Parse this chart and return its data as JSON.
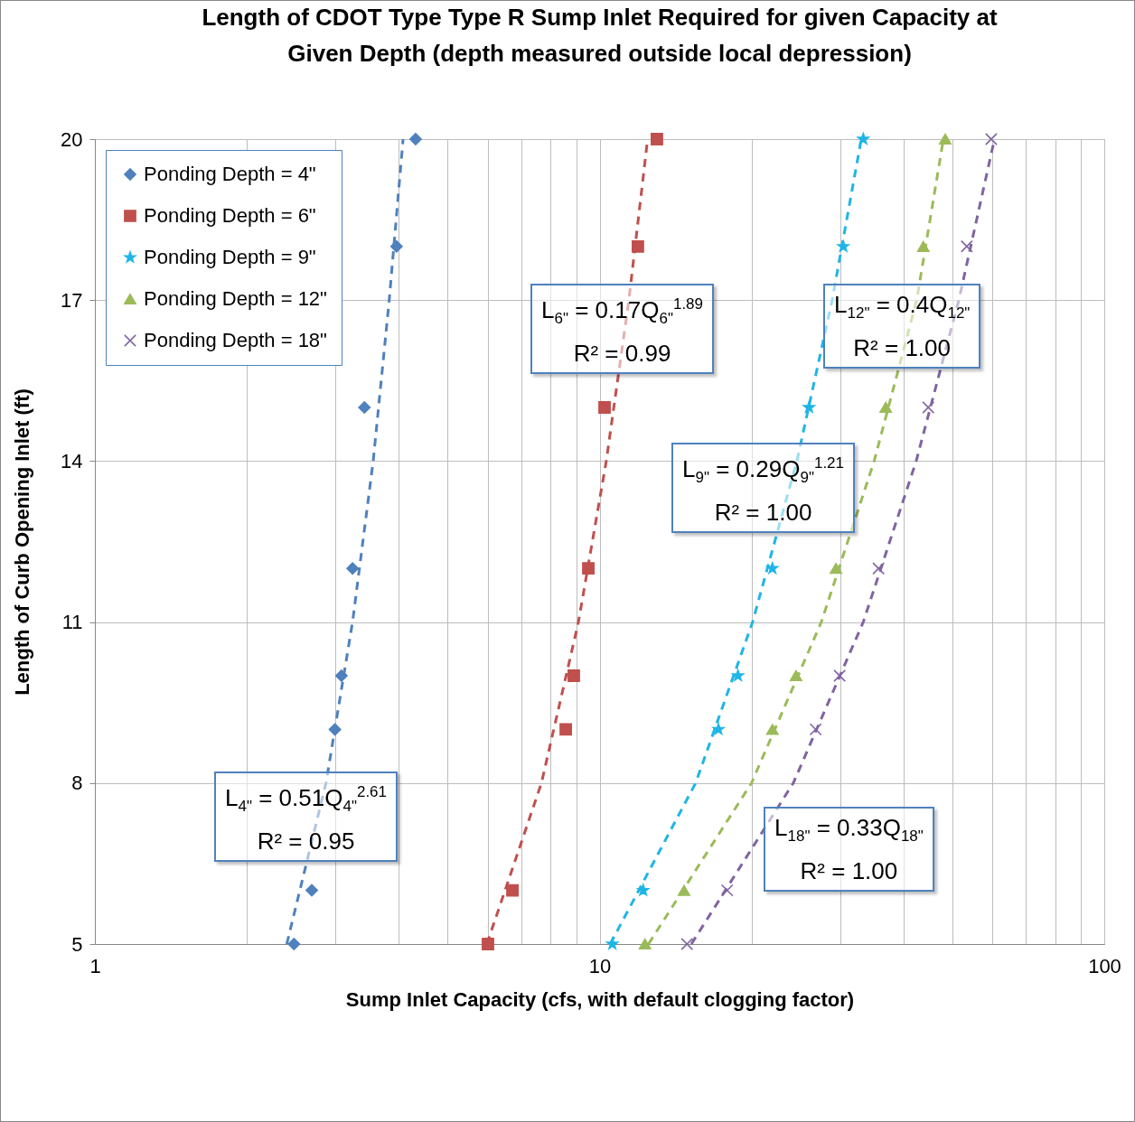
{
  "chart_data": {
    "type": "scatter",
    "title": "Length of CDOT Type Type R Sump Inlet Required for given Capacity at\nGiven Depth   (depth measured outside local depression)",
    "xlabel": "Sump Inlet Capacity (cfs, with default clogging factor)",
    "ylabel": "Length of Curb Opening Inlet (ft)",
    "log": "x",
    "grid": true,
    "legend": "top left",
    "xlim": [
      1,
      100
    ],
    "ylim": [
      5,
      20
    ],
    "xticks": [
      1,
      {
        "value": 2,
        "label": null
      },
      {
        "value": 3,
        "label": null
      },
      {
        "value": 4,
        "label": null
      },
      {
        "value": 5,
        "label": null
      },
      {
        "value": 6,
        "label": null
      },
      {
        "value": 7,
        "label": null
      },
      {
        "value": 8,
        "label": null
      },
      {
        "value": 9,
        "label": null
      },
      10,
      {
        "value": 20,
        "label": null
      },
      {
        "value": 30,
        "label": null
      },
      {
        "value": 40,
        "label": null
      },
      {
        "value": 50,
        "label": null
      },
      {
        "value": 60,
        "label": null
      },
      {
        "value": 70,
        "label": null
      },
      {
        "value": 80,
        "label": null
      },
      {
        "value": 90,
        "label": null
      },
      100
    ],
    "yticks": [
      5,
      8,
      11,
      14,
      17,
      20
    ],
    "series": [
      {
        "name": "Ponding Depth = 4\"",
        "type": "scatter",
        "marker": "diamond",
        "color": "#4f81bd",
        "x": [
          2.48,
          2.69,
          2.99,
          3.08,
          3.24,
          3.42,
          3.96,
          4.32
        ],
        "values": [
          5,
          6,
          9,
          10,
          12,
          15,
          18,
          20
        ]
      },
      {
        "name": "Ponding Depth = 6\"",
        "type": "scatter",
        "marker": "square",
        "color": "#c0504d",
        "x": [
          6.01,
          6.72,
          8.57,
          8.89,
          9.5,
          10.23,
          11.91,
          12.99
        ],
        "values": [
          5,
          6,
          9,
          10,
          12,
          15,
          18,
          20
        ]
      },
      {
        "name": "Ponding Depth = 9\"",
        "type": "scatter",
        "marker": "star",
        "color": "#1fb5e6",
        "x": [
          10.6,
          12.2,
          17.2,
          18.8,
          22,
          26,
          30.4,
          33.3
        ],
        "values": [
          5,
          6,
          9,
          10,
          12,
          15,
          18,
          20
        ]
      },
      {
        "name": "Ponding Depth = 12\"",
        "type": "scatter",
        "marker": "triangle",
        "color": "#9bbb59",
        "x": [
          12.3,
          14.7,
          22,
          24.5,
          29.4,
          36.9,
          43.8,
          48.4
        ],
        "values": [
          5,
          6,
          9,
          10,
          12,
          15,
          18,
          20
        ]
      },
      {
        "name": "Ponding Depth = 18\"",
        "type": "scatter",
        "marker": "cross",
        "color": "#8064a2",
        "x": [
          14.9,
          17.9,
          26.8,
          29.9,
          35.7,
          44.8,
          53.4,
          59.7
        ],
        "values": [
          5,
          6,
          9,
          10,
          12,
          15,
          18,
          20
        ]
      },
      {
        "type": "line",
        "line_style": "dashed",
        "color": "#4f81bd",
        "x": [
          2.4,
          2.87,
          3.24,
          3.56,
          3.83,
          4.08
        ],
        "values": [
          5,
          8,
          11,
          14,
          17,
          20
        ]
      },
      {
        "type": "line",
        "line_style": "dashed",
        "color": "#c0504d",
        "x": [
          5.98,
          7.67,
          9.08,
          10.31,
          11.43,
          12.45
        ],
        "values": [
          5,
          8,
          11,
          14,
          17,
          20
        ]
      },
      {
        "type": "line",
        "line_style": "dashed",
        "color": "#1fb5e6",
        "x": [
          10.5,
          15.5,
          20.1,
          24.6,
          28.9,
          33
        ],
        "values": [
          5,
          8,
          11,
          14,
          17,
          20
        ]
      },
      {
        "type": "line",
        "line_style": "dashed",
        "color": "#9bbb59",
        "x": [
          12.5,
          20,
          27.5,
          35,
          42.5,
          48
        ],
        "values": [
          5,
          8,
          11,
          14,
          17,
          20
        ]
      },
      {
        "type": "line",
        "line_style": "dashed",
        "color": "#8064a2",
        "x": [
          15.2,
          24.2,
          33.3,
          42.4,
          51.5,
          60.6
        ],
        "values": [
          5,
          8,
          11,
          14,
          17,
          20
        ]
      }
    ],
    "annotations": [
      "L$_{4\"}$ = 0.51Q$_{4\"}$$^{2.61}$\nR² = 0.95",
      "L$_{6\"}$ = 0.17Q$_{6\"}$$^{1.89}$\nR² = 0.99",
      "L$_{12\"}$ = 0.4Q$_{12\"}$\nR² = 1.00",
      "L$_{9\"}$ = 0.29Q$_{9\"}$$^{1.21}$\nR² = 1.00",
      "L$_{18\"}$ = 0.33Q$_{18\"}$\nR² = 1.00"
    ]
  }
}
